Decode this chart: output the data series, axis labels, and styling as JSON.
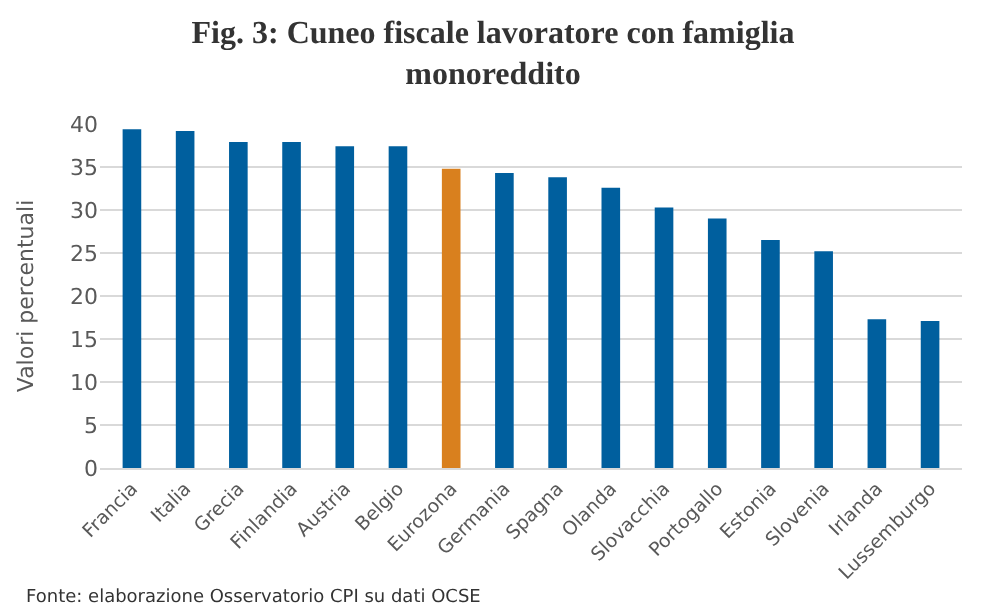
{
  "chart_data": {
    "type": "bar",
    "title": "Fig. 3: Cuneo fiscale lavoratore con famiglia\nmonoreddito",
    "ylabel": "Valori percentuali",
    "categories": [
      "Francia",
      "Italia",
      "Grecia",
      "Finlandia",
      "Austria",
      "Belgio",
      "Eurozona",
      "Germania",
      "Spagna",
      "Olanda",
      "Slovacchia",
      "Portogallo",
      "Estonia",
      "Slovenia",
      "Irlanda",
      "Lussemburgo"
    ],
    "values": [
      39.4,
      39.2,
      37.9,
      37.9,
      37.4,
      37.4,
      34.8,
      34.3,
      33.8,
      32.6,
      30.3,
      29.0,
      26.5,
      25.2,
      17.3,
      17.1
    ],
    "colors": [
      "#005f9e",
      "#005f9e",
      "#005f9e",
      "#005f9e",
      "#005f9e",
      "#005f9e",
      "#d9801e",
      "#005f9e",
      "#005f9e",
      "#005f9e",
      "#005f9e",
      "#005f9e",
      "#005f9e",
      "#005f9e",
      "#005f9e",
      "#005f9e"
    ],
    "ylim": [
      0,
      40
    ],
    "yticks": [
      0,
      5,
      10,
      15,
      20,
      25,
      30,
      35,
      40
    ],
    "grid": "y",
    "annotations": [
      "Fonte: elaborazione Osservatorio CPI su dati OCSE"
    ]
  }
}
